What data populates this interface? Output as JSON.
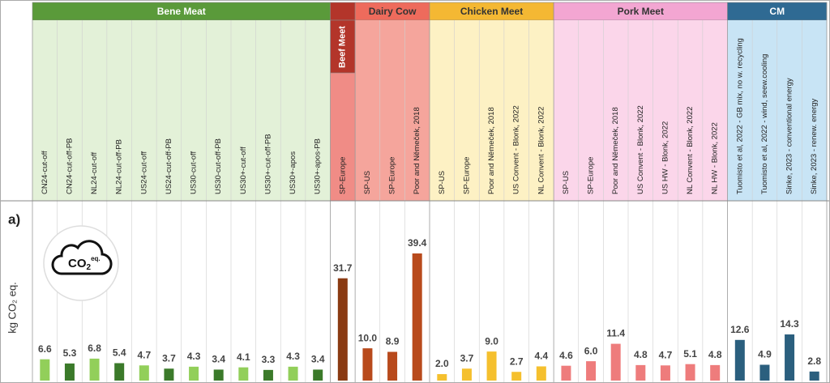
{
  "chart_data": {
    "type": "bar",
    "annotation": "a)",
    "y_label": "kg CO₂ eq.",
    "icon": {
      "main": "CO",
      "sub": "2",
      "sup": "eq."
    },
    "groups": [
      {
        "name": "Bene Meat",
        "header_color": "#5a9a3a",
        "background": "#e3f1d8",
        "label_position": "header",
        "categories": [
          "CN24-cut-off",
          "CN24-cut-off-PB",
          "NL24-cut-off",
          "NL24-cut-off-PB",
          "US24-cut-off",
          "US24-cut-off-PB",
          "US30-cut-off",
          "US30-cut-off-PB",
          "US30+-cut-off",
          "US30+-cut-off-PB",
          "US30+-apos",
          "US30+-apos-PB"
        ],
        "values": [
          6.6,
          5.3,
          6.8,
          5.4,
          4.7,
          3.7,
          4.3,
          3.4,
          4.1,
          3.3,
          4.3,
          3.4
        ],
        "colors": [
          "#92cf5a",
          "#3b7a2a",
          "#92cf5a",
          "#3b7a2a",
          "#92cf5a",
          "#3b7a2a",
          "#92cf5a",
          "#3b7a2a",
          "#92cf5a",
          "#3b7a2a",
          "#92cf5a",
          "#3b7a2a"
        ]
      },
      {
        "name": "Beef Meet",
        "header_color": "#b3352a",
        "background": "#f08c86",
        "label_position": "column",
        "categories": [
          "SP-Europe"
        ],
        "values": [
          31.7
        ],
        "color": "#8a3a12"
      },
      {
        "name": "Dairy Cow",
        "header_color": "#ee6b5c",
        "background": "#f5a59c",
        "label_position": "header",
        "categories": [
          "SP-US",
          "SP-Europe",
          "Poor and Němeček, 2018"
        ],
        "values": [
          10,
          8.9,
          39.4
        ],
        "value_labels": [
          "10.0",
          "8.9",
          "39.4"
        ],
        "color": "#b84a1c"
      },
      {
        "name": "Chicken Meet",
        "header_color": "#f4b833",
        "background": "#fdf1c4",
        "label_position": "header",
        "categories": [
          "SP-US",
          "SP-Europe",
          "Poor and Němeček, 2018",
          "US Convent - Blonk, 2022",
          "NL Convent - Blonk, 2022"
        ],
        "values": [
          2,
          3.7,
          9,
          2.7,
          4.4
        ],
        "value_labels": [
          "2.0",
          "3.7",
          "9.0",
          "2.7",
          "4.4"
        ],
        "color": "#f5c02e"
      },
      {
        "name": "Pork Meet",
        "header_color": "#f3a6d2",
        "background": "#fbd6ea",
        "label_position": "header",
        "categories": [
          "SP-US",
          "SP-Europe",
          "Poor and Němeček, 2018",
          "US Convent - Blonk, 2022",
          "US HW - Blonk, 2022",
          "NL Convent - Blonk, 2022",
          "NL HW - Blonk, 2022"
        ],
        "values": [
          4.6,
          6,
          11.4,
          4.8,
          4.7,
          5.1,
          4.8
        ],
        "value_labels": [
          "4.6",
          "6.0",
          "11.4",
          "4.8",
          "4.7",
          "5.1",
          "4.8"
        ],
        "color": "#ee7c7c"
      },
      {
        "name": "CM",
        "header_color": "#2f6a93",
        "background": "#c8e4f5",
        "label_position": "header",
        "categories": [
          "Tuomisto et al, 2022 - GB mix, no w. recycling",
          "Tuomisto et al, 2022 - wind, seew.cooling",
          "Sinke, 2023 - conventional energy",
          "Sinke, 2023 - renew. energy"
        ],
        "values": [
          12.6,
          4.9,
          14.3,
          2.8
        ],
        "color": "#2b5f7e"
      }
    ]
  }
}
